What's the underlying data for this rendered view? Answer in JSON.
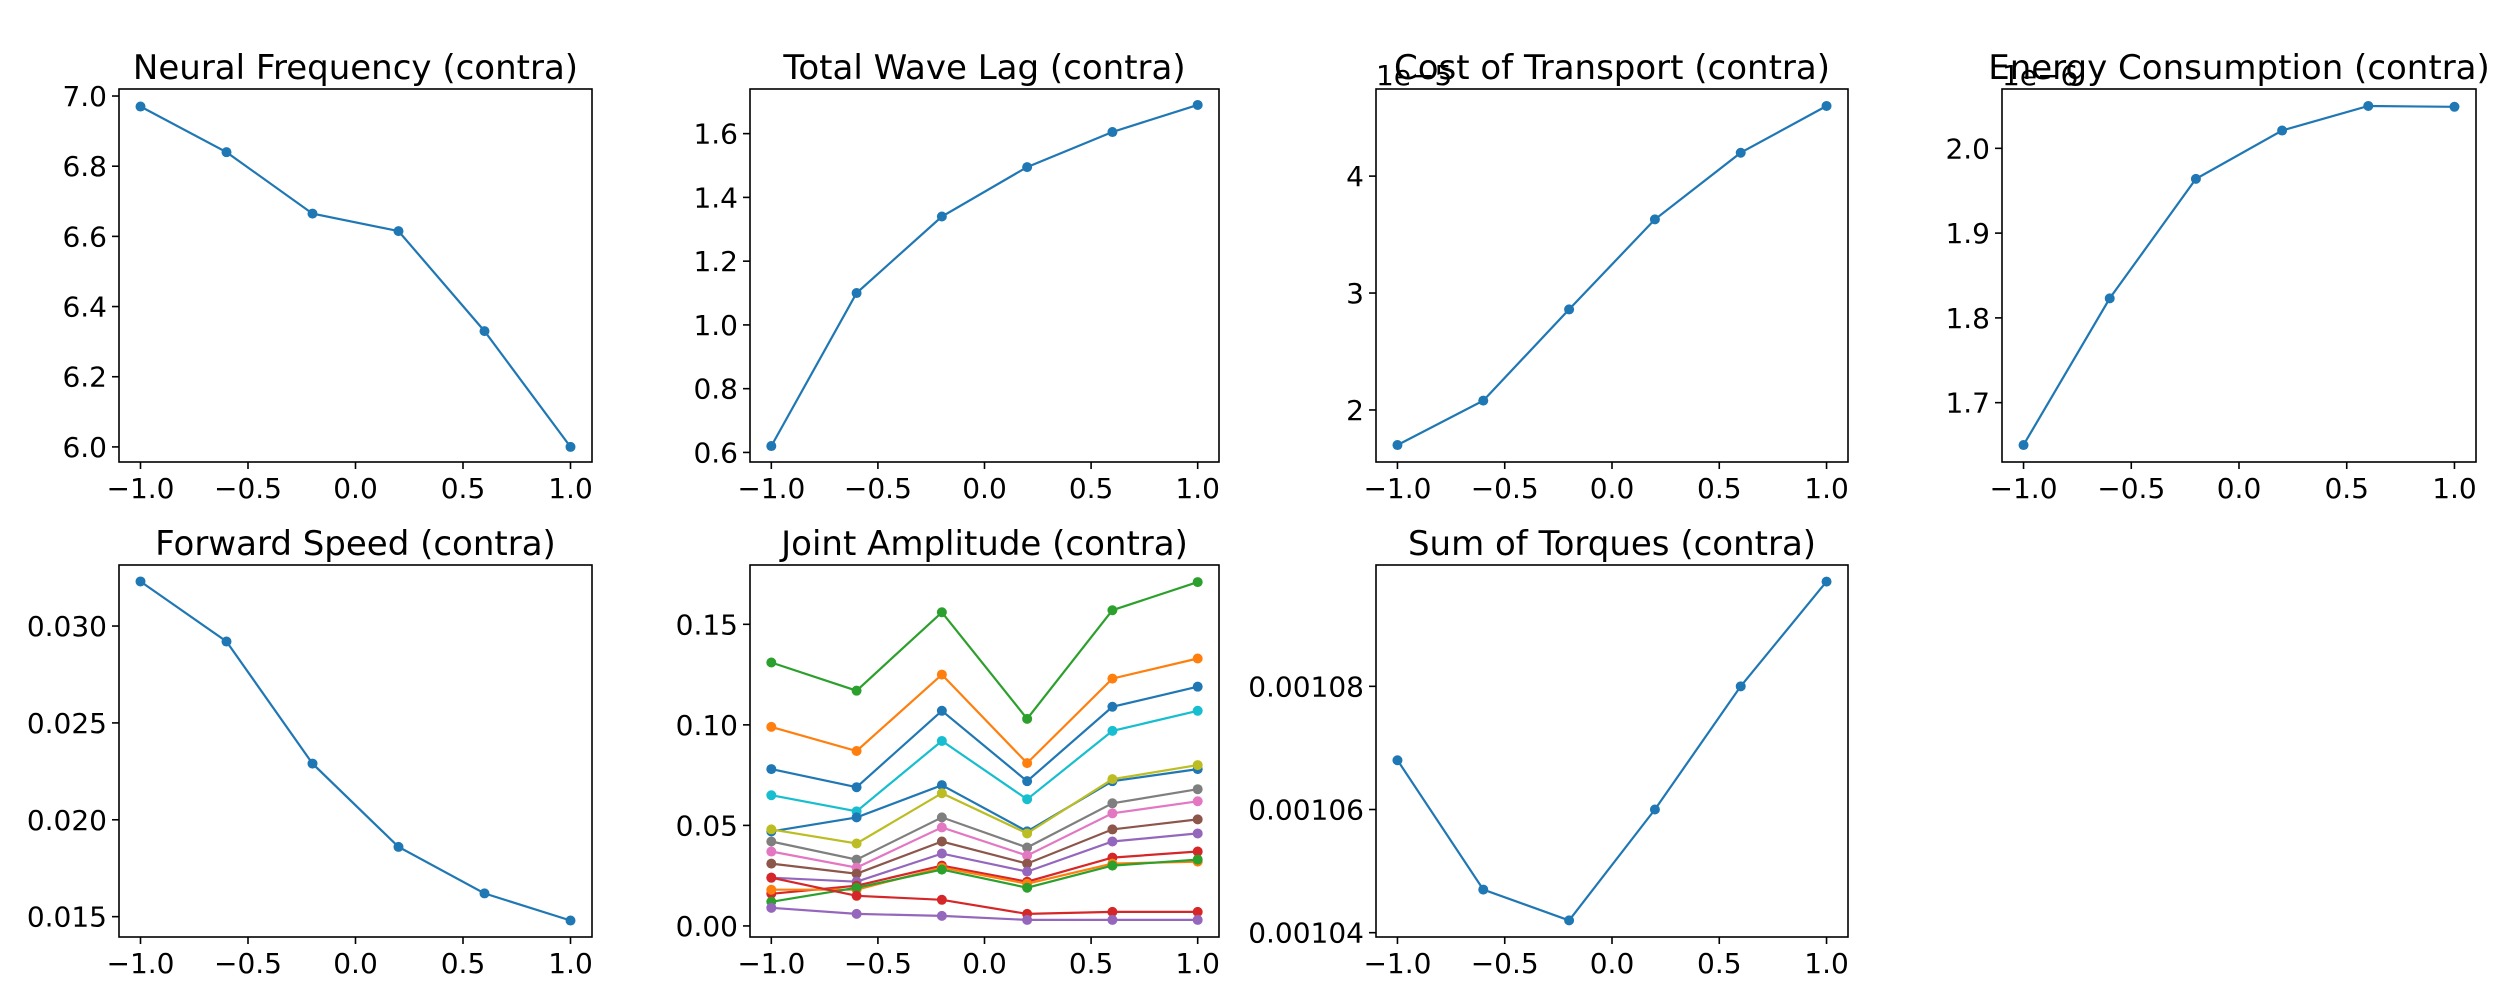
{
  "colors": [
    "#1f77b4",
    "#ff7f0e",
    "#2ca02c",
    "#d62728",
    "#9467bd",
    "#8c564b",
    "#e377c2",
    "#7f7f7f",
    "#bcbd22",
    "#17becf"
  ],
  "chart_data": [
    {
      "type": "line",
      "title": "Neural Frequency (contra)",
      "x": [
        -1.0,
        -0.6,
        -0.2,
        0.2,
        0.6,
        1.0
      ],
      "series": [
        {
          "color": "#1f77b4",
          "values": [
            6.97,
            6.84,
            6.665,
            6.615,
            6.33,
            6.0
          ]
        }
      ],
      "xlim": [
        -1.1,
        1.1
      ],
      "ylim": [
        5.957,
        7.02
      ],
      "xticks": [
        -1.0,
        -0.5,
        0.0,
        0.5,
        1.0
      ],
      "xtick_labels": [
        "−1.0",
        "−0.5",
        "0.0",
        "0.5",
        "1.0"
      ],
      "yticks": [
        6.0,
        6.2,
        6.4,
        6.6,
        6.8,
        7.0
      ],
      "ytick_labels": [
        "6.0",
        "6.2",
        "6.4",
        "6.6",
        "6.8",
        "7.0"
      ],
      "offset_text": ""
    },
    {
      "type": "line",
      "title": "Total Wave Lag (contra)",
      "x": [
        -1.0,
        -0.6,
        -0.2,
        0.2,
        0.6,
        1.0
      ],
      "series": [
        {
          "color": "#1f77b4",
          "values": [
            0.62,
            1.1,
            1.34,
            1.495,
            1.605,
            1.69
          ]
        }
      ],
      "xlim": [
        -1.1,
        1.1
      ],
      "ylim": [
        0.57,
        1.74
      ],
      "xticks": [
        -1.0,
        -0.5,
        0.0,
        0.5,
        1.0
      ],
      "xtick_labels": [
        "−1.0",
        "−0.5",
        "0.0",
        "0.5",
        "1.0"
      ],
      "yticks": [
        0.6,
        0.8,
        1.0,
        1.2,
        1.4,
        1.6
      ],
      "ytick_labels": [
        "0.6",
        "0.8",
        "1.0",
        "1.2",
        "1.4",
        "1.6"
      ],
      "offset_text": ""
    },
    {
      "type": "line",
      "title": "Cost of Transport (contra)",
      "x": [
        -1.0,
        -0.6,
        -0.2,
        0.2,
        0.6,
        1.0
      ],
      "series": [
        {
          "color": "#1f77b4",
          "values": [
            1.7e-05,
            2.08e-05,
            2.86e-05,
            3.63e-05,
            4.2e-05,
            4.6e-05
          ]
        }
      ],
      "xlim": [
        -1.1,
        1.1
      ],
      "ylim": [
        1.555e-05,
        4.745e-05
      ],
      "xticks": [
        -1.0,
        -0.5,
        0.0,
        0.5,
        1.0
      ],
      "xtick_labels": [
        "−1.0",
        "−0.5",
        "0.0",
        "0.5",
        "1.0"
      ],
      "yticks": [
        2e-05,
        3e-05,
        4e-05
      ],
      "ytick_labels": [
        "2",
        "3",
        "4"
      ],
      "offset_text": "1e−5"
    },
    {
      "type": "line",
      "title": "Energy Consumption (contra)",
      "x": [
        -1.0,
        -0.6,
        -0.2,
        0.2,
        0.6,
        1.0
      ],
      "series": [
        {
          "color": "#1f77b4",
          "values": [
            1.65e-06,
            1.823e-06,
            1.964e-06,
            2.021e-06,
            2.05e-06,
            2.049e-06
          ]
        }
      ],
      "xlim": [
        -1.1,
        1.1
      ],
      "ylim": [
        1.63e-06,
        2.07e-06
      ],
      "xticks": [
        -1.0,
        -0.5,
        0.0,
        0.5,
        1.0
      ],
      "xtick_labels": [
        "−1.0",
        "−0.5",
        "0.0",
        "0.5",
        "1.0"
      ],
      "yticks": [
        1.7e-06,
        1.8e-06,
        1.9e-06,
        2e-06
      ],
      "ytick_labels": [
        "1.7",
        "1.8",
        "1.9",
        "2.0"
      ],
      "offset_text": "1e−6"
    },
    {
      "type": "line",
      "title": "Forward Speed (contra)",
      "x": [
        -1.0,
        -0.6,
        -0.2,
        0.2,
        0.6,
        1.0
      ],
      "series": [
        {
          "color": "#1f77b4",
          "values": [
            0.0323,
            0.0292,
            0.0229,
            0.0186,
            0.0162,
            0.0148
          ]
        }
      ],
      "xlim": [
        -1.1,
        1.1
      ],
      "ylim": [
        0.01395,
        0.03315
      ],
      "xticks": [
        -1.0,
        -0.5,
        0.0,
        0.5,
        1.0
      ],
      "xtick_labels": [
        "−1.0",
        "−0.5",
        "0.0",
        "0.5",
        "1.0"
      ],
      "yticks": [
        0.015,
        0.02,
        0.025,
        0.03
      ],
      "ytick_labels": [
        "0.015",
        "0.020",
        "0.025",
        "0.030"
      ],
      "offset_text": ""
    },
    {
      "type": "line",
      "title": "Joint Amplitude (contra)",
      "x": [
        -1.0,
        -0.6,
        -0.2,
        0.2,
        0.6,
        1.0
      ],
      "series": [
        {
          "color": "#2ca02c",
          "values": [
            0.131,
            0.117,
            0.156,
            0.103,
            0.157,
            0.171
          ]
        },
        {
          "color": "#ff7f0e",
          "values": [
            0.099,
            0.087,
            0.125,
            0.081,
            0.123,
            0.133
          ]
        },
        {
          "color": "#1f77b4",
          "values": [
            0.078,
            0.069,
            0.107,
            0.072,
            0.109,
            0.119
          ]
        },
        {
          "color": "#17becf",
          "values": [
            0.065,
            0.057,
            0.092,
            0.063,
            0.097,
            0.107
          ]
        },
        {
          "color": "#1f77b4",
          "values": [
            0.047,
            0.054,
            0.07,
            0.047,
            0.072,
            0.078
          ]
        },
        {
          "color": "#bcbd22",
          "values": [
            0.048,
            0.041,
            0.066,
            0.046,
            0.073,
            0.08
          ]
        },
        {
          "color": "#7f7f7f",
          "values": [
            0.042,
            0.033,
            0.054,
            0.039,
            0.061,
            0.068
          ]
        },
        {
          "color": "#e377c2",
          "values": [
            0.037,
            0.029,
            0.049,
            0.035,
            0.056,
            0.062
          ]
        },
        {
          "color": "#8c564b",
          "values": [
            0.031,
            0.026,
            0.042,
            0.031,
            0.048,
            0.053
          ]
        },
        {
          "color": "#9467bd",
          "values": [
            0.024,
            0.022,
            0.036,
            0.027,
            0.042,
            0.046
          ]
        },
        {
          "color": "#d62728",
          "values": [
            0.016,
            0.02,
            0.03,
            0.022,
            0.034,
            0.037
          ]
        },
        {
          "color": "#ff7f0e",
          "values": [
            0.018,
            0.018,
            0.029,
            0.021,
            0.031,
            0.032
          ]
        },
        {
          "color": "#2ca02c",
          "values": [
            0.012,
            0.019,
            0.028,
            0.019,
            0.03,
            0.033
          ]
        },
        {
          "color": "#d62728",
          "values": [
            0.024,
            0.015,
            0.013,
            0.006,
            0.007,
            0.007
          ]
        },
        {
          "color": "#9467bd",
          "values": [
            0.009,
            0.006,
            0.005,
            0.003,
            0.003,
            0.003
          ]
        }
      ],
      "xlim": [
        -1.1,
        1.1
      ],
      "ylim": [
        -0.0055,
        0.1795
      ],
      "xticks": [
        -1.0,
        -0.5,
        0.0,
        0.5,
        1.0
      ],
      "xtick_labels": [
        "−1.0",
        "−0.5",
        "0.0",
        "0.5",
        "1.0"
      ],
      "yticks": [
        0.0,
        0.05,
        0.1,
        0.15
      ],
      "ytick_labels": [
        "0.00",
        "0.05",
        "0.10",
        "0.15"
      ],
      "offset_text": ""
    },
    {
      "type": "line",
      "title": "Sum of Torques (contra)",
      "x": [
        -1.0,
        -0.6,
        -0.2,
        0.2,
        0.6,
        1.0
      ],
      "series": [
        {
          "color": "#1f77b4",
          "values": [
            0.001068,
            0.001047,
            0.001042,
            0.00106,
            0.00108,
            0.001097
          ]
        }
      ],
      "xlim": [
        -1.1,
        1.1
      ],
      "ylim": [
        0.0010393,
        0.0010997
      ],
      "xticks": [
        -1.0,
        -0.5,
        0.0,
        0.5,
        1.0
      ],
      "xtick_labels": [
        "−1.0",
        "−0.5",
        "0.0",
        "0.5",
        "1.0"
      ],
      "yticks": [
        0.00104,
        0.00106,
        0.00108
      ],
      "ytick_labels": [
        "0.00104",
        "0.00106",
        "0.00108"
      ],
      "offset_text": ""
    }
  ]
}
